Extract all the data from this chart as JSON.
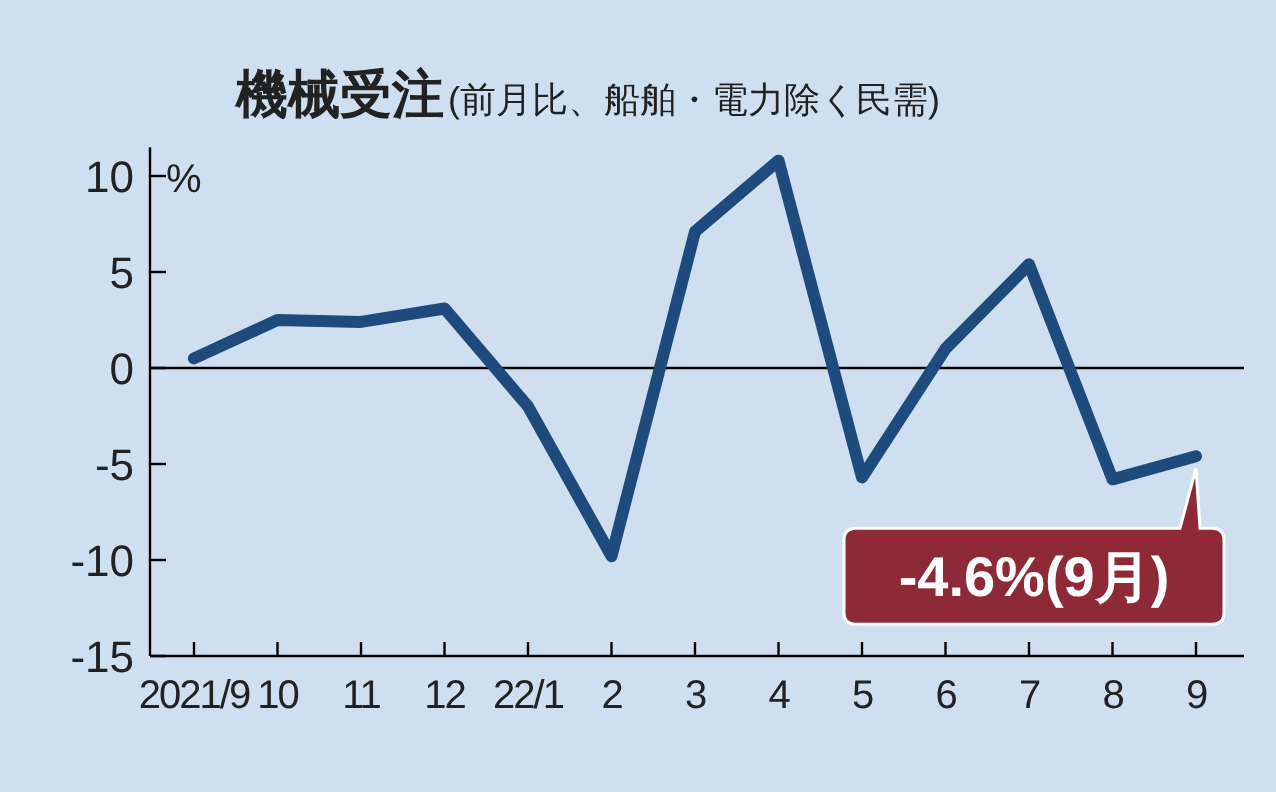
{
  "chart_data": {
    "type": "line",
    "title": "機械受注",
    "subtitle": "(前月比、船舶・電力除く民需)",
    "ylabel": "%",
    "categories": [
      "2021/9",
      "10",
      "11",
      "12",
      "22/1",
      "2",
      "3",
      "4",
      "5",
      "6",
      "7",
      "8",
      "9"
    ],
    "series": [
      {
        "color": "#1f4b7c",
        "values": [
          0.5,
          2.5,
          2.4,
          3.1,
          -2.0,
          -9.8,
          7.1,
          10.8,
          -5.7,
          1.0,
          5.4,
          -5.8,
          -4.6
        ]
      }
    ],
    "ylim": [
      -15,
      11.5
    ],
    "yticks": [
      10,
      5,
      0,
      -5,
      -10,
      -15
    ],
    "ref_lines": [
      {
        "axis": "y",
        "value": 0,
        "color": "#000000"
      }
    ],
    "annotations": [
      {
        "text": "-4.6%(9月)",
        "x": "9",
        "y": -4.6
      }
    ],
    "grid": false,
    "marker": "none",
    "line_style": "solid"
  }
}
